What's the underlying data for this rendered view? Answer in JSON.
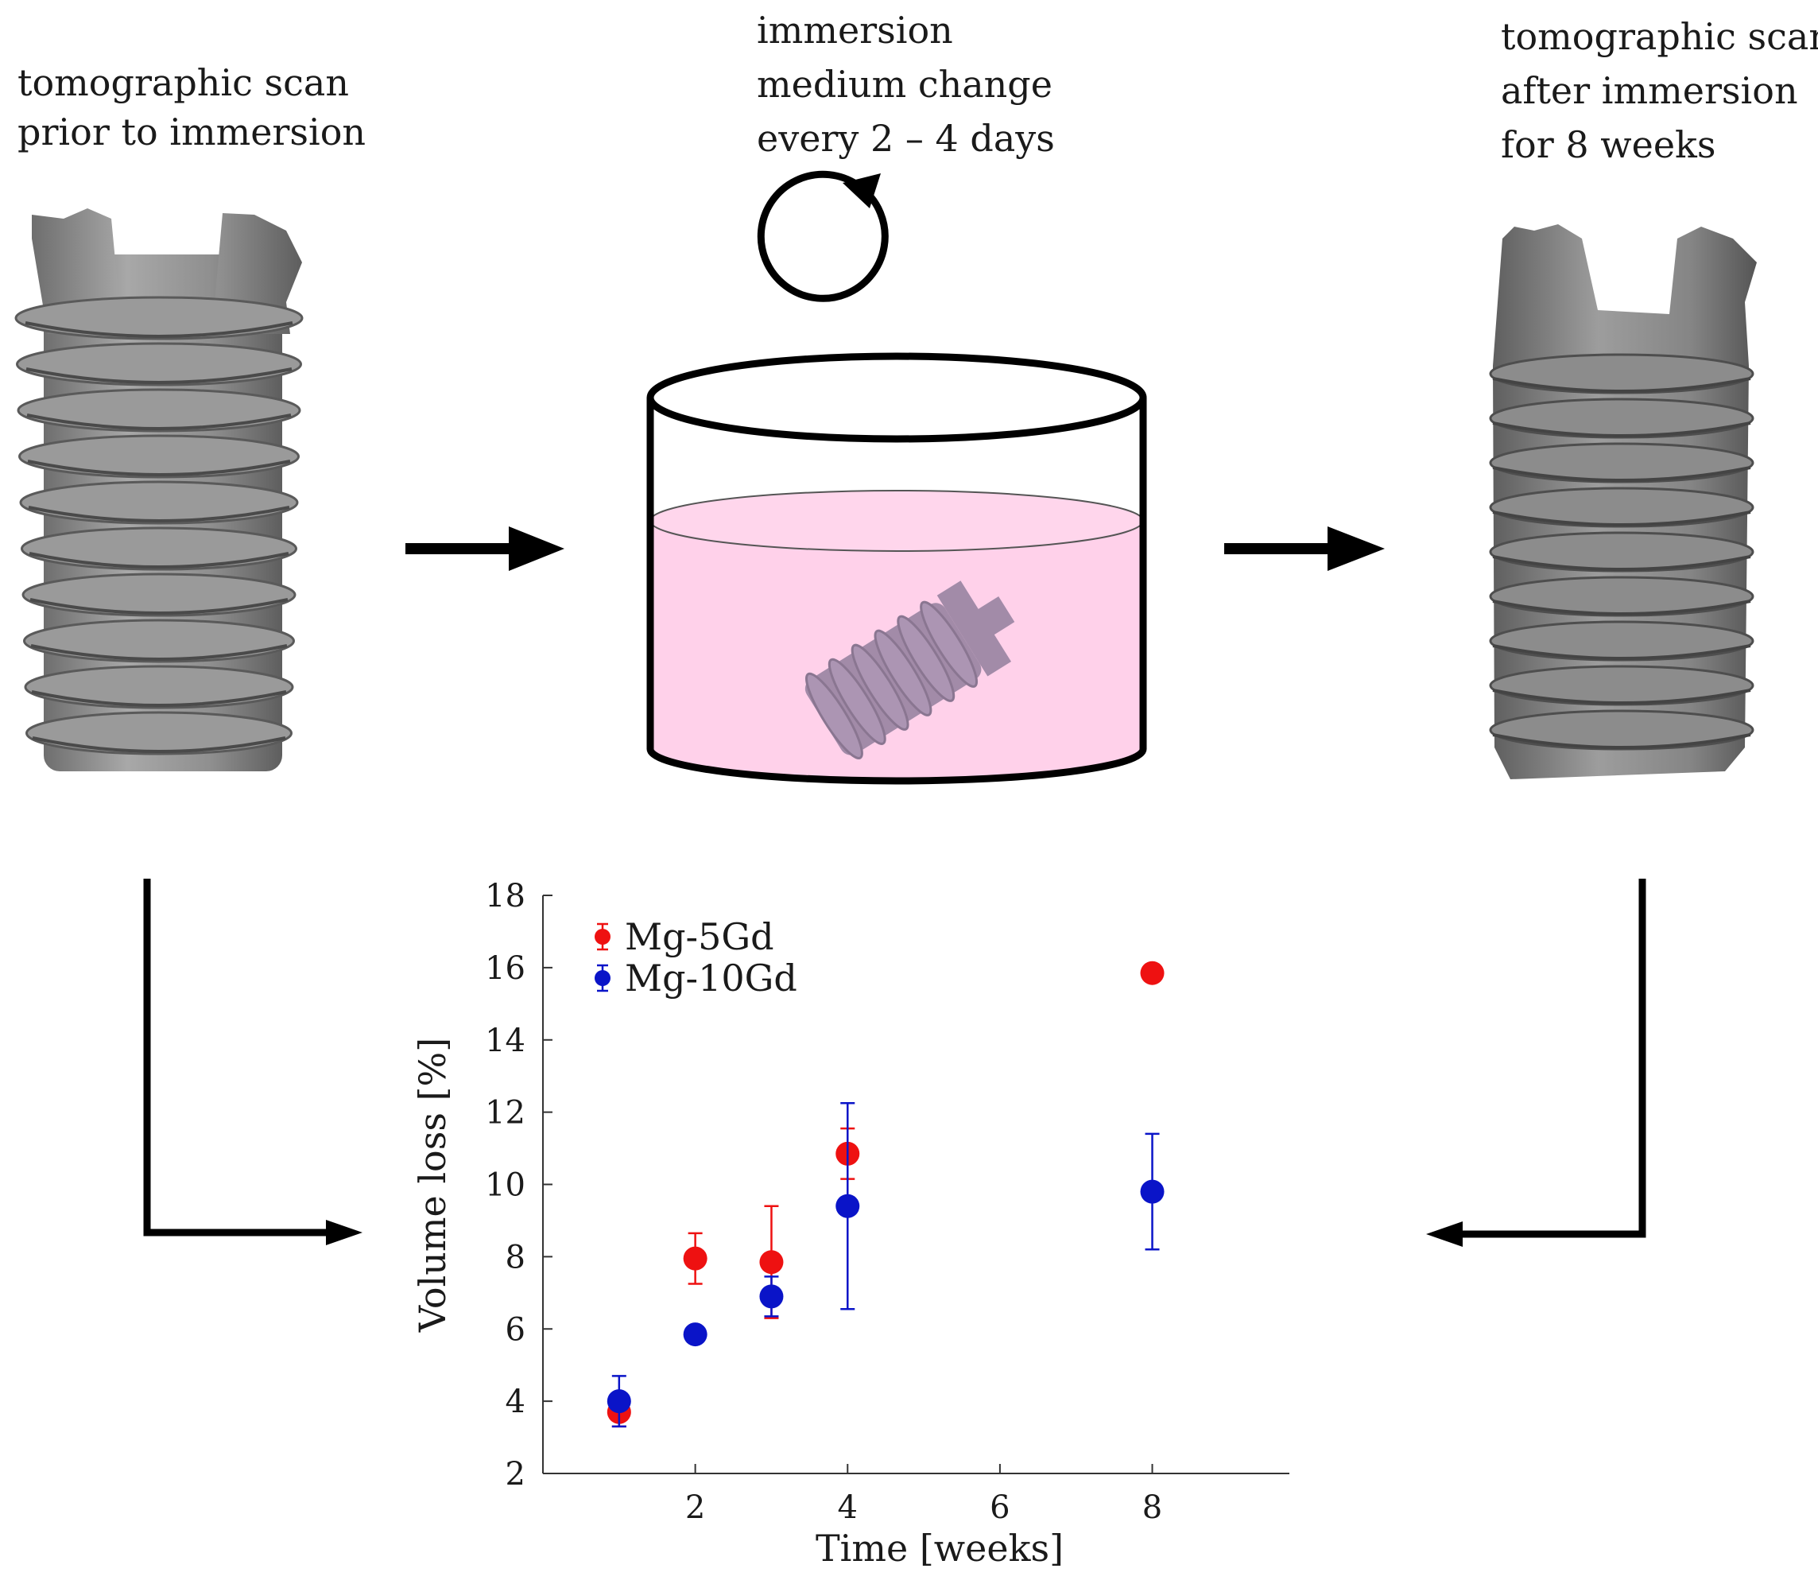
{
  "labels": {
    "left": [
      "tomographic scan",
      "prior to immersion"
    ],
    "middle": [
      "immersion",
      "medium change",
      "every 2 – 4 days"
    ],
    "right": [
      "tomographic scan",
      "after immersion",
      "for 8 weeks"
    ]
  },
  "colors": {
    "screw_gray": "#8c8c8c",
    "liquid_pink": "#ffd1ea",
    "series_red": "#ee1111",
    "series_blue": "#0a14c8"
  },
  "chart_data": {
    "type": "scatter",
    "xlabel": "Time [weeks]",
    "ylabel": "Volume loss [%]",
    "xlim": [
      0,
      9.8
    ],
    "ylim": [
      2,
      18
    ],
    "xticks": [
      2,
      4,
      6,
      8
    ],
    "yticks": [
      2,
      4,
      6,
      8,
      10,
      12,
      14,
      16,
      18
    ],
    "grid": false,
    "legend": "top-left",
    "series": [
      {
        "name": "Mg-5Gd",
        "color": "#ee1111",
        "x": [
          1,
          2,
          3,
          4,
          8
        ],
        "y": [
          3.7,
          7.95,
          7.85,
          10.85,
          15.85
        ],
        "err": [
          0.4,
          0.7,
          1.55,
          0.7,
          0.0
        ]
      },
      {
        "name": "Mg-10Gd",
        "color": "#0a14c8",
        "x": [
          1,
          2,
          3,
          4,
          8
        ],
        "y": [
          4.0,
          5.85,
          6.9,
          9.4,
          9.8
        ],
        "err": [
          0.7,
          0.15,
          0.55,
          2.85,
          1.6
        ]
      }
    ]
  }
}
